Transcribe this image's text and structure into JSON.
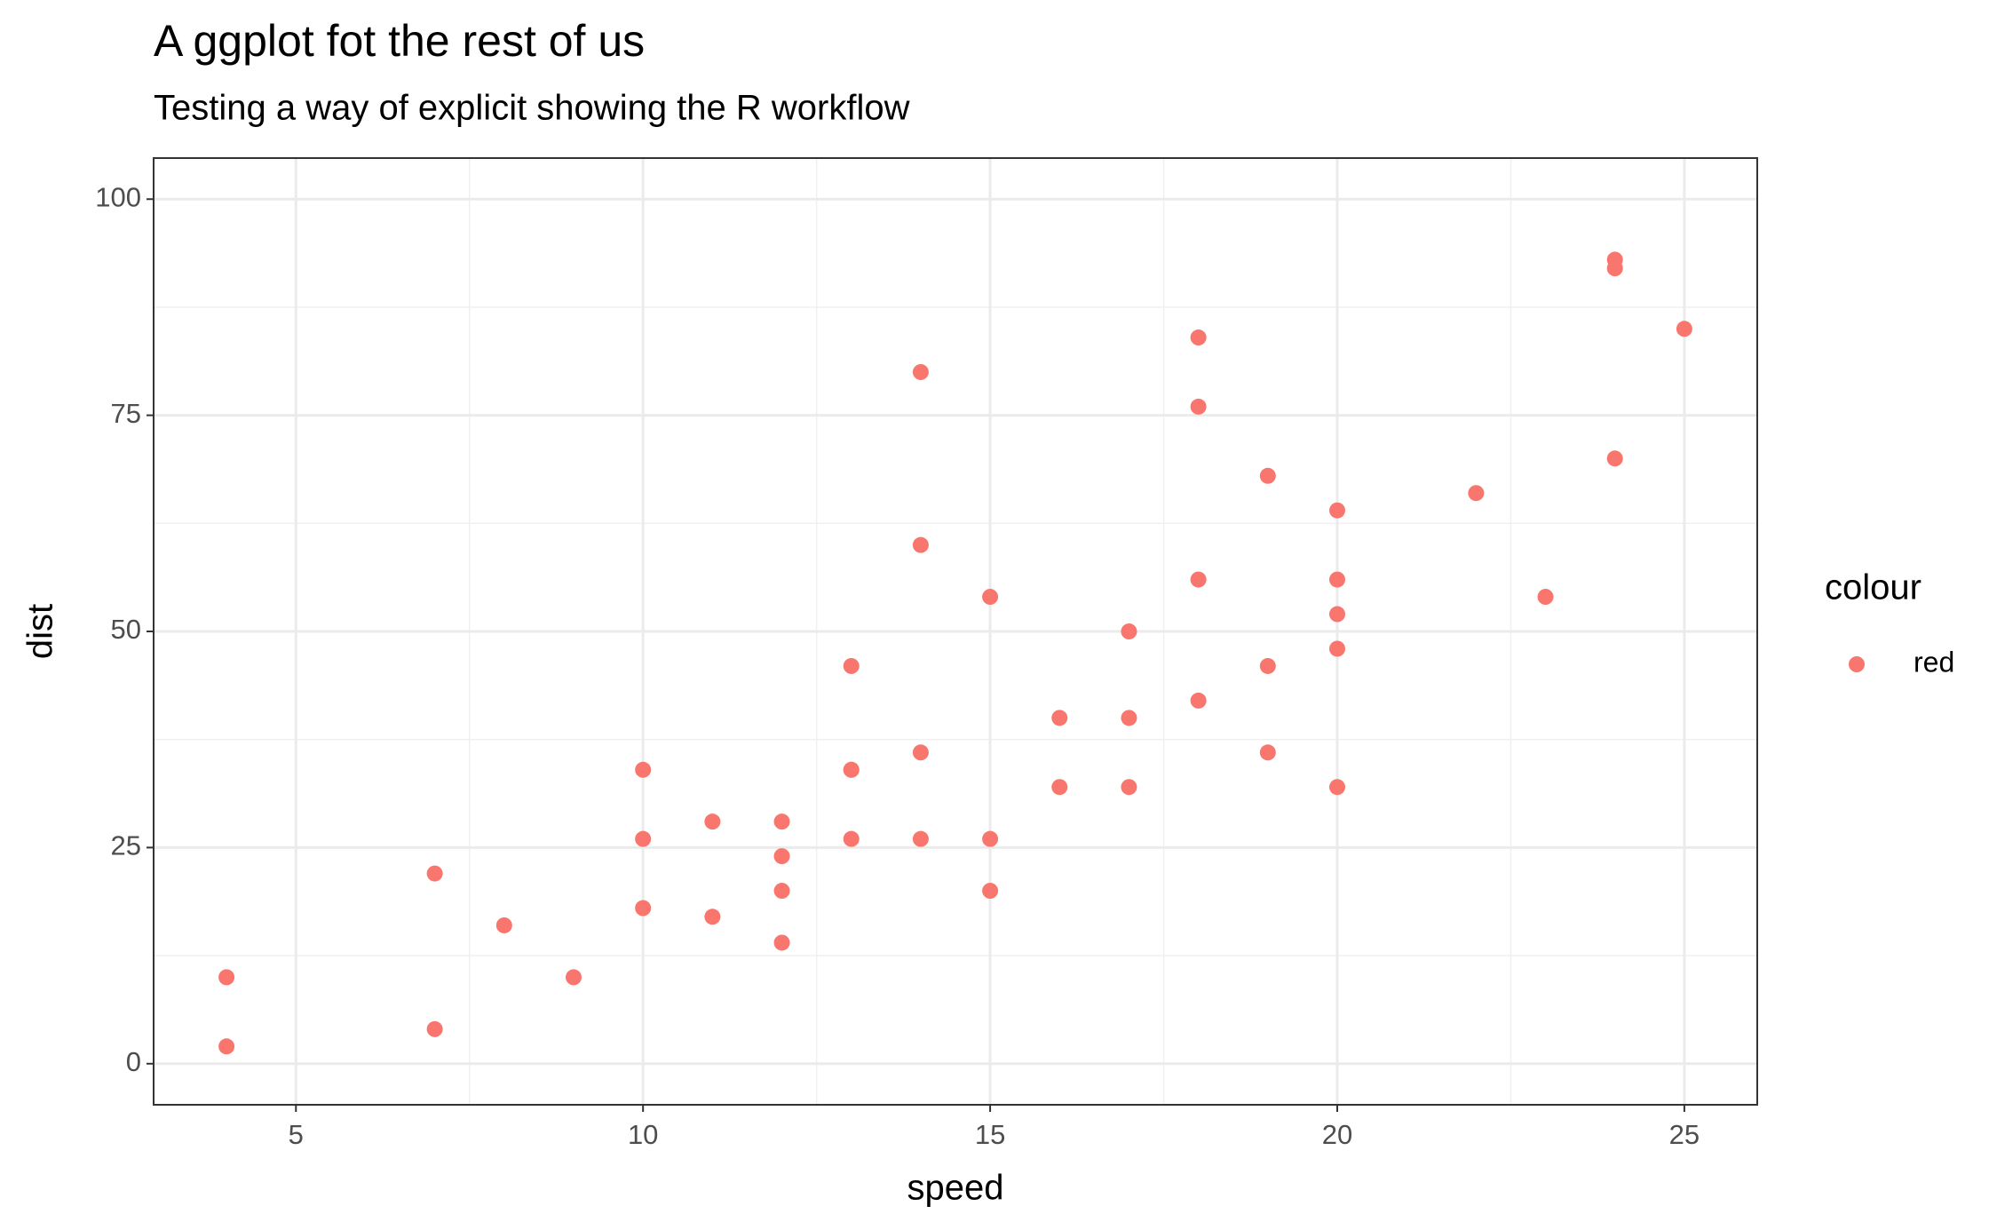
{
  "chart_data": {
    "type": "scatter",
    "title": "A ggplot fot the rest of us",
    "subtitle": "Testing a way of explicit showing the R workflow",
    "x_label": "speed",
    "y_label": "dist",
    "legend_title": "colour",
    "series": [
      {
        "name": "red",
        "color": "#F8766D",
        "x": [
          4,
          4,
          7,
          7,
          8,
          9,
          10,
          10,
          10,
          11,
          11,
          12,
          12,
          12,
          12,
          13,
          13,
          13,
          13,
          14,
          14,
          14,
          14,
          15,
          15,
          15,
          16,
          16,
          17,
          17,
          17,
          18,
          18,
          18,
          18,
          19,
          19,
          19,
          20,
          20,
          20,
          20,
          20,
          22,
          23,
          24,
          24,
          24,
          25
        ],
        "values": [
          2,
          10,
          4,
          22,
          16,
          10,
          18,
          26,
          34,
          17,
          28,
          14,
          20,
          24,
          28,
          26,
          34,
          34,
          46,
          26,
          36,
          60,
          80,
          20,
          26,
          54,
          32,
          40,
          32,
          40,
          50,
          42,
          56,
          76,
          84,
          36,
          46,
          68,
          32,
          48,
          52,
          56,
          64,
          66,
          54,
          70,
          92,
          93,
          85
        ]
      }
    ],
    "xlim": [
      2.95,
      26.05
    ],
    "xticks": [
      5,
      10,
      15,
      20,
      25
    ],
    "ylim": [
      -4.75,
      104.75
    ],
    "yticks": [
      0,
      25,
      50,
      75,
      100
    ],
    "grid": true,
    "legend": "right"
  }
}
